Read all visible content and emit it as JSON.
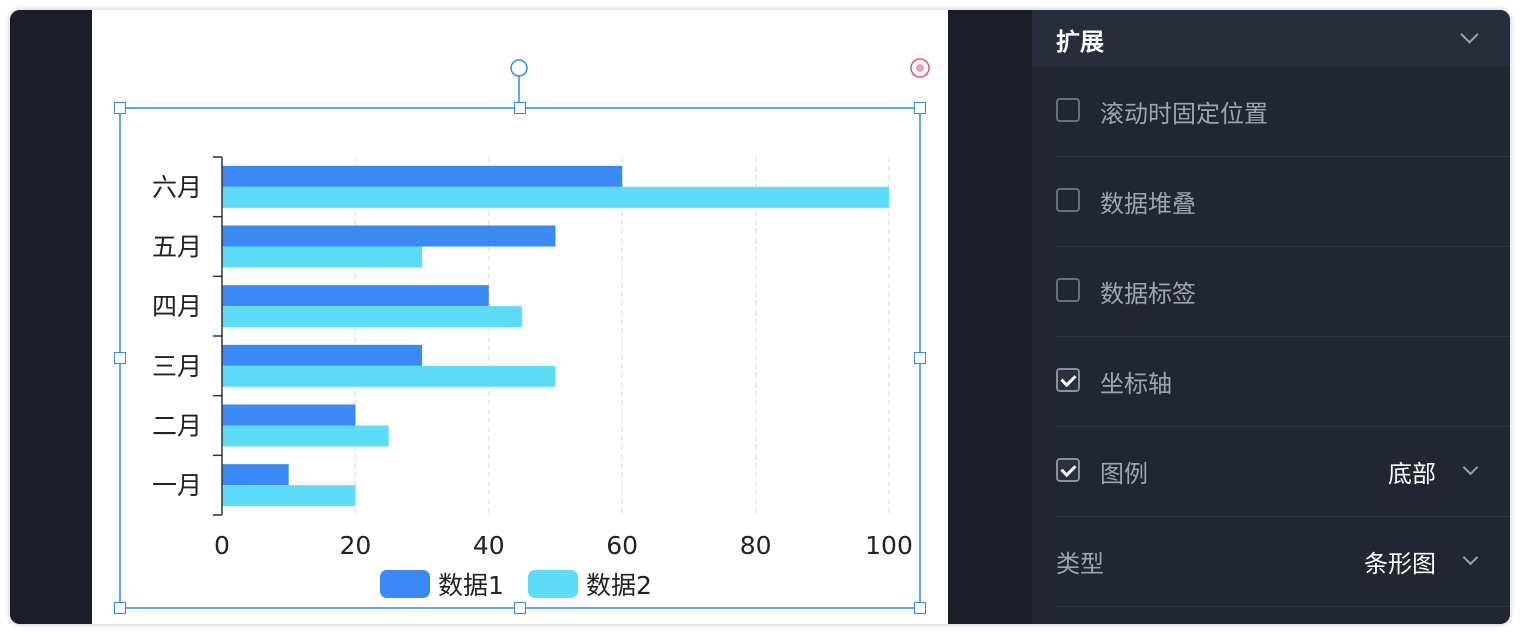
{
  "canvas": {
    "chart_data": {
      "type": "bar",
      "orientation": "horizontal",
      "categories": [
        "一月",
        "二月",
        "三月",
        "四月",
        "五月",
        "六月"
      ],
      "series": [
        {
          "name": "数据1",
          "values": [
            10,
            20,
            30,
            40,
            50,
            60
          ],
          "color": "#3a89f5"
        },
        {
          "name": "数据2",
          "values": [
            20,
            25,
            50,
            45,
            30,
            100
          ],
          "color": "#5cdcf7"
        }
      ],
      "xlim": [
        0,
        100
      ],
      "xticks": [
        "0",
        "20",
        "40",
        "60",
        "80",
        "100"
      ],
      "grid": "vertical-dashed",
      "legend": "bottom",
      "selection_color": "#2f8ae5",
      "delete_handle_color": "#e05068"
    }
  },
  "panel": {
    "title": "扩展",
    "options": [
      {
        "label": "滚动时固定位置",
        "checked": false
      },
      {
        "label": "数据堆叠",
        "checked": false
      },
      {
        "label": "数据标签",
        "checked": false
      },
      {
        "label": "坐标轴",
        "checked": true
      },
      {
        "label": "图例",
        "checked": true,
        "value": "底部"
      }
    ],
    "type_label": "类型",
    "type_value": "条形图"
  }
}
